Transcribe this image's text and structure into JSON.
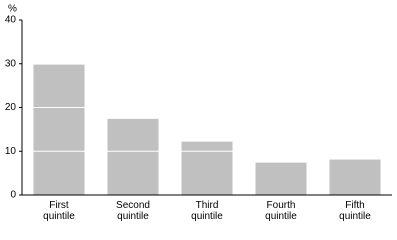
{
  "chart_data": {
    "type": "bar",
    "y_label": "%",
    "categories": [
      "First quintile",
      "Second quintile",
      "Third quintile",
      "Fourth quintile",
      "Fifth quintile"
    ],
    "values": [
      29.8,
      17.4,
      12.2,
      7.4,
      8.1
    ],
    "color": "#c0c0c0",
    "ylim": [
      0,
      40
    ],
    "yticks": [
      0,
      10,
      20,
      30,
      40
    ],
    "grid": true
  }
}
